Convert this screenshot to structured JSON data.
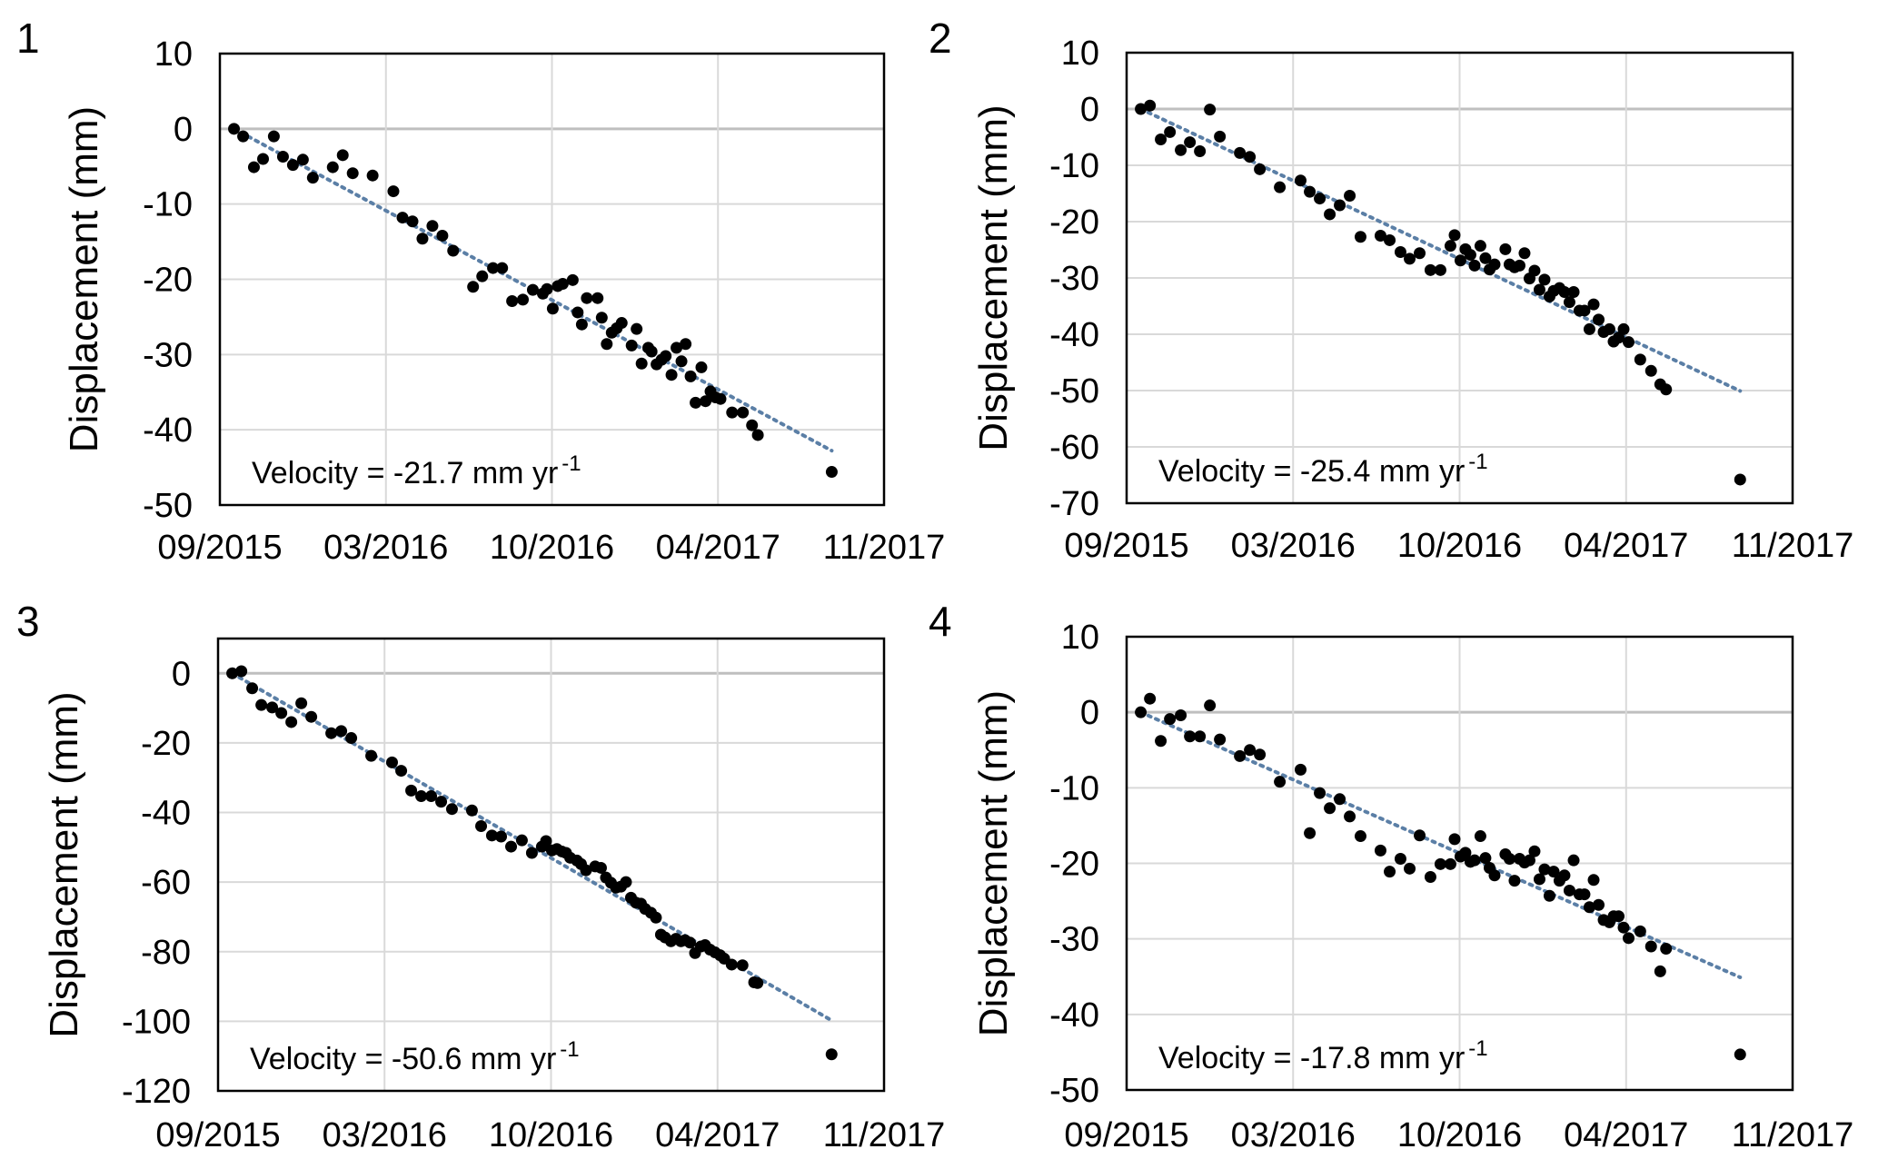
{
  "chart_data": [
    {
      "type": "scatter",
      "panel_label": "1",
      "ylabel": "Displacement (mm)",
      "ylim": [
        -50,
        10
      ],
      "yticks": [
        10,
        0,
        -10,
        -20,
        -30,
        -40,
        -50
      ],
      "xlim": [
        "2015-09-01",
        "2017-11-09"
      ],
      "xtick_labels": [
        "09/2015",
        "03/2016",
        "10/2016",
        "04/2017",
        "11/2017"
      ],
      "grid": true,
      "annotation": {
        "text": "Velocity = -21.7 mm yr",
        "superscript": "-1"
      },
      "trend": {
        "style": "dotted",
        "velocity_mm_per_yr": -21.7,
        "start": "2015-09-18",
        "end": "2017-09-07"
      },
      "points": [
        [
          "2015-09-18",
          0
        ],
        [
          "2015-09-29",
          -1.0
        ],
        [
          "2015-10-12",
          -5.1
        ],
        [
          "2015-10-23",
          -4.0
        ],
        [
          "2015-11-05",
          -1.0
        ],
        [
          "2015-11-16",
          -3.7
        ],
        [
          "2015-11-28",
          -4.8
        ],
        [
          "2015-12-10",
          -4.1
        ],
        [
          "2015-12-22",
          -6.5
        ],
        [
          "2016-01-15",
          -5.1
        ],
        [
          "2016-01-27",
          -3.5
        ],
        [
          "2016-02-08",
          -5.9
        ],
        [
          "2016-03-03",
          -6.2
        ],
        [
          "2016-03-28",
          -8.3
        ],
        [
          "2016-04-08",
          -11.8
        ],
        [
          "2016-04-20",
          -12.3
        ],
        [
          "2016-05-02",
          -14.6
        ],
        [
          "2016-05-14",
          -12.9
        ],
        [
          "2016-05-26",
          -14.2
        ],
        [
          "2016-06-08",
          -16.2
        ],
        [
          "2016-07-02",
          -21.0
        ],
        [
          "2016-07-13",
          -19.6
        ],
        [
          "2016-07-26",
          -18.5
        ],
        [
          "2016-08-06",
          -18.5
        ],
        [
          "2016-08-18",
          -22.9
        ],
        [
          "2016-08-31",
          -22.7
        ],
        [
          "2016-09-12",
          -21.4
        ],
        [
          "2016-09-24",
          -21.9
        ],
        [
          "2016-09-29",
          -21.3
        ],
        [
          "2016-10-06",
          -23.9
        ],
        [
          "2016-10-12",
          -20.9
        ],
        [
          "2016-10-18",
          -20.6
        ],
        [
          "2016-10-30",
          -20.1
        ],
        [
          "2016-11-05",
          -24.4
        ],
        [
          "2016-11-10",
          -26.0
        ],
        [
          "2016-11-16",
          -22.5
        ],
        [
          "2016-11-29",
          -22.5
        ],
        [
          "2016-12-04",
          -25.1
        ],
        [
          "2016-12-10",
          -28.6
        ],
        [
          "2016-12-16",
          -27.1
        ],
        [
          "2016-12-22",
          -26.5
        ],
        [
          "2016-12-28",
          -25.8
        ],
        [
          "2017-01-09",
          -28.8
        ],
        [
          "2017-01-15",
          -26.6
        ],
        [
          "2017-01-21",
          -31.2
        ],
        [
          "2017-01-29",
          -29.1
        ],
        [
          "2017-02-02",
          -29.6
        ],
        [
          "2017-02-08",
          -31.3
        ],
        [
          "2017-02-14",
          -30.7
        ],
        [
          "2017-02-19",
          -30.2
        ],
        [
          "2017-02-26",
          -32.7
        ],
        [
          "2017-03-04",
          -29.1
        ],
        [
          "2017-03-10",
          -30.9
        ],
        [
          "2017-03-15",
          -28.6
        ],
        [
          "2017-03-21",
          -32.9
        ],
        [
          "2017-03-27",
          -36.4
        ],
        [
          "2017-04-03",
          -31.7
        ],
        [
          "2017-04-08",
          -36.2
        ],
        [
          "2017-04-14",
          -34.9
        ],
        [
          "2017-04-20",
          -35.7
        ],
        [
          "2017-04-26",
          -35.9
        ],
        [
          "2017-05-10",
          -37.7
        ],
        [
          "2017-05-23",
          -37.7
        ],
        [
          "2017-06-03",
          -39.4
        ],
        [
          "2017-06-10",
          -40.7
        ],
        [
          "2017-09-07",
          -45.6
        ]
      ]
    },
    {
      "type": "scatter",
      "panel_label": "2",
      "ylabel": "Displacement (mm)",
      "ylim": [
        -70,
        10
      ],
      "yticks": [
        10,
        0,
        -10,
        -20,
        -30,
        -40,
        -50,
        -60,
        -70
      ],
      "xlim": [
        "2015-09-01",
        "2017-11-09"
      ],
      "xtick_labels": [
        "09/2015",
        "03/2016",
        "10/2016",
        "04/2017",
        "11/2017"
      ],
      "grid": true,
      "annotation": {
        "text": "Velocity = -25.4 mm yr",
        "superscript": "-1"
      },
      "trend": {
        "style": "dotted",
        "velocity_mm_per_yr": -25.4,
        "start": "2015-09-18",
        "end": "2017-09-07"
      },
      "points": [
        [
          "2015-09-18",
          0
        ],
        [
          "2015-09-29",
          0.6
        ],
        [
          "2015-10-12",
          -5.4
        ],
        [
          "2015-10-23",
          -4.1
        ],
        [
          "2015-11-05",
          -7.3
        ],
        [
          "2015-11-16",
          -5.9
        ],
        [
          "2015-11-28",
          -7.5
        ],
        [
          "2015-12-10",
          -0.1
        ],
        [
          "2015-12-22",
          -4.9
        ],
        [
          "2016-01-15",
          -7.8
        ],
        [
          "2016-01-27",
          -8.5
        ],
        [
          "2016-02-08",
          -10.7
        ],
        [
          "2016-03-03",
          -13.9
        ],
        [
          "2016-03-28",
          -12.7
        ],
        [
          "2016-04-08",
          -14.7
        ],
        [
          "2016-04-20",
          -15.9
        ],
        [
          "2016-05-02",
          -18.7
        ],
        [
          "2016-05-14",
          -17.1
        ],
        [
          "2016-05-26",
          -15.4
        ],
        [
          "2016-06-08",
          -22.7
        ],
        [
          "2016-07-02",
          -22.5
        ],
        [
          "2016-07-13",
          -23.3
        ],
        [
          "2016-07-26",
          -25.4
        ],
        [
          "2016-08-06",
          -26.6
        ],
        [
          "2016-08-18",
          -25.6
        ],
        [
          "2016-08-31",
          -28.6
        ],
        [
          "2016-09-12",
          -28.6
        ],
        [
          "2016-09-24",
          -24.3
        ],
        [
          "2016-09-29",
          -22.4
        ],
        [
          "2016-10-06",
          -26.9
        ],
        [
          "2016-10-12",
          -24.9
        ],
        [
          "2016-10-18",
          -25.9
        ],
        [
          "2016-10-23",
          -27.8
        ],
        [
          "2016-10-30",
          -24.3
        ],
        [
          "2016-11-05",
          -26.5
        ],
        [
          "2016-11-10",
          -28.5
        ],
        [
          "2016-11-16",
          -27.6
        ],
        [
          "2016-11-29",
          -24.9
        ],
        [
          "2016-12-04",
          -27.6
        ],
        [
          "2016-12-10",
          -28.1
        ],
        [
          "2016-12-16",
          -27.8
        ],
        [
          "2016-12-22",
          -25.6
        ],
        [
          "2016-12-28",
          -30.1
        ],
        [
          "2017-01-03",
          -28.7
        ],
        [
          "2017-01-09",
          -32.1
        ],
        [
          "2017-01-15",
          -30.3
        ],
        [
          "2017-01-21",
          -33.3
        ],
        [
          "2017-01-26",
          -32.3
        ],
        [
          "2017-02-02",
          -31.8
        ],
        [
          "2017-02-08",
          -32.5
        ],
        [
          "2017-02-14",
          -34.3
        ],
        [
          "2017-02-19",
          -32.5
        ],
        [
          "2017-02-26",
          -35.8
        ],
        [
          "2017-03-04",
          -35.8
        ],
        [
          "2017-03-10",
          -39.1
        ],
        [
          "2017-03-15",
          -34.7
        ],
        [
          "2017-03-21",
          -37.4
        ],
        [
          "2017-03-27",
          -39.6
        ],
        [
          "2017-04-03",
          -39.1
        ],
        [
          "2017-04-08",
          -41.3
        ],
        [
          "2017-04-14",
          -40.6
        ],
        [
          "2017-04-20",
          -39.1
        ],
        [
          "2017-04-26",
          -41.4
        ],
        [
          "2017-05-10",
          -44.5
        ],
        [
          "2017-05-23",
          -46.5
        ],
        [
          "2017-06-03",
          -48.9
        ],
        [
          "2017-06-10",
          -49.8
        ],
        [
          "2017-09-07",
          -65.8
        ]
      ]
    },
    {
      "type": "scatter",
      "panel_label": "3",
      "ylabel": "Displacement (mm)",
      "ylim": [
        -120,
        10
      ],
      "yticks": [
        0,
        -20,
        -40,
        -60,
        -80,
        -100,
        -120
      ],
      "xlim": [
        "2015-09-01",
        "2017-11-09"
      ],
      "xtick_labels": [
        "09/2015",
        "03/2016",
        "10/2016",
        "04/2017",
        "11/2017"
      ],
      "grid": true,
      "annotation": {
        "text": "Velocity = -50.6 mm yr",
        "superscript": "-1"
      },
      "trend": {
        "style": "dotted",
        "velocity_mm_per_yr": -50.6,
        "start": "2015-09-18",
        "end": "2017-09-07"
      },
      "points": [
        [
          "2015-09-18",
          0
        ],
        [
          "2015-09-29",
          0.6
        ],
        [
          "2015-10-12",
          -4.3
        ],
        [
          "2015-10-23",
          -9.1
        ],
        [
          "2015-11-05",
          -9.8
        ],
        [
          "2015-11-16",
          -11.4
        ],
        [
          "2015-11-28",
          -14.0
        ],
        [
          "2015-12-10",
          -8.6
        ],
        [
          "2015-12-22",
          -12.5
        ],
        [
          "2016-01-15",
          -17.2
        ],
        [
          "2016-01-27",
          -16.6
        ],
        [
          "2016-02-08",
          -18.6
        ],
        [
          "2016-03-03",
          -23.7
        ],
        [
          "2016-03-28",
          -25.6
        ],
        [
          "2016-04-08",
          -28.0
        ],
        [
          "2016-04-20",
          -33.7
        ],
        [
          "2016-05-02",
          -35.3
        ],
        [
          "2016-05-14",
          -35.3
        ],
        [
          "2016-05-26",
          -36.9
        ],
        [
          "2016-06-08",
          -39.0
        ],
        [
          "2016-07-02",
          -39.4
        ],
        [
          "2016-07-13",
          -43.9
        ],
        [
          "2016-07-26",
          -46.6
        ],
        [
          "2016-08-06",
          -46.9
        ],
        [
          "2016-08-18",
          -49.8
        ],
        [
          "2016-08-31",
          -48.0
        ],
        [
          "2016-09-12",
          -51.6
        ],
        [
          "2016-09-24",
          -49.8
        ],
        [
          "2016-09-29",
          -48.2
        ],
        [
          "2016-10-06",
          -50.9
        ],
        [
          "2016-10-12",
          -50.5
        ],
        [
          "2016-10-18",
          -51.2
        ],
        [
          "2016-10-23",
          -51.6
        ],
        [
          "2016-10-28",
          -53.0
        ],
        [
          "2016-11-05",
          -53.8
        ],
        [
          "2016-11-10",
          -54.8
        ],
        [
          "2016-11-16",
          -56.6
        ],
        [
          "2016-11-27",
          -55.5
        ],
        [
          "2016-12-04",
          -55.9
        ],
        [
          "2016-12-10",
          -58.7
        ],
        [
          "2016-12-16",
          -60.2
        ],
        [
          "2016-12-22",
          -61.6
        ],
        [
          "2016-12-28",
          -61.3
        ],
        [
          "2017-01-03",
          -60.0
        ],
        [
          "2017-01-09",
          -64.5
        ],
        [
          "2017-01-15",
          -65.9
        ],
        [
          "2017-01-21",
          -66.2
        ],
        [
          "2017-01-26",
          -67.7
        ],
        [
          "2017-02-02",
          -68.8
        ],
        [
          "2017-02-08",
          -70.2
        ],
        [
          "2017-02-14",
          -75.1
        ],
        [
          "2017-02-19",
          -75.9
        ],
        [
          "2017-02-26",
          -77.0
        ],
        [
          "2017-03-04",
          -76.3
        ],
        [
          "2017-03-10",
          -77.0
        ],
        [
          "2017-03-15",
          -76.7
        ],
        [
          "2017-03-21",
          -77.4
        ],
        [
          "2017-03-27",
          -80.4
        ],
        [
          "2017-04-03",
          -78.5
        ],
        [
          "2017-04-08",
          -78.1
        ],
        [
          "2017-04-14",
          -79.4
        ],
        [
          "2017-04-20",
          -80.2
        ],
        [
          "2017-04-26",
          -81.0
        ],
        [
          "2017-05-01",
          -82.0
        ],
        [
          "2017-05-10",
          -83.7
        ],
        [
          "2017-05-23",
          -83.9
        ],
        [
          "2017-06-06",
          -88.8
        ],
        [
          "2017-06-10",
          -89.0
        ],
        [
          "2017-09-07",
          -109.5
        ]
      ]
    },
    {
      "type": "scatter",
      "panel_label": "4",
      "ylabel": "Displacement (mm)",
      "ylim": [
        -50,
        10
      ],
      "yticks": [
        10,
        0,
        -10,
        -20,
        -30,
        -40,
        -50
      ],
      "xlim": [
        "2015-09-01",
        "2017-11-09"
      ],
      "xtick_labels": [
        "09/2015",
        "03/2016",
        "10/2016",
        "04/2017",
        "11/2017"
      ],
      "grid": true,
      "annotation": {
        "text": "Velocity = -17.8 mm yr",
        "superscript": "-1"
      },
      "trend": {
        "style": "dotted",
        "velocity_mm_per_yr": -17.8,
        "start": "2015-09-18",
        "end": "2017-09-07"
      },
      "points": [
        [
          "2015-09-18",
          0
        ],
        [
          "2015-09-29",
          1.8
        ],
        [
          "2015-10-12",
          -3.8
        ],
        [
          "2015-10-23",
          -0.9
        ],
        [
          "2015-11-05",
          -0.4
        ],
        [
          "2015-11-16",
          -3.2
        ],
        [
          "2015-11-28",
          -3.2
        ],
        [
          "2015-12-10",
          0.9
        ],
        [
          "2015-12-22",
          -3.6
        ],
        [
          "2016-01-15",
          -5.8
        ],
        [
          "2016-01-27",
          -5.0
        ],
        [
          "2016-02-08",
          -5.6
        ],
        [
          "2016-03-03",
          -9.2
        ],
        [
          "2016-03-28",
          -7.6
        ],
        [
          "2016-04-08",
          -16.0
        ],
        [
          "2016-04-20",
          -10.7
        ],
        [
          "2016-05-02",
          -12.7
        ],
        [
          "2016-05-14",
          -11.5
        ],
        [
          "2016-05-26",
          -13.8
        ],
        [
          "2016-06-08",
          -16.4
        ],
        [
          "2016-07-02",
          -18.3
        ],
        [
          "2016-07-13",
          -21.1
        ],
        [
          "2016-07-26",
          -19.4
        ],
        [
          "2016-08-06",
          -20.7
        ],
        [
          "2016-08-18",
          -16.3
        ],
        [
          "2016-08-31",
          -21.8
        ],
        [
          "2016-09-12",
          -20.1
        ],
        [
          "2016-09-24",
          -20.1
        ],
        [
          "2016-09-29",
          -16.8
        ],
        [
          "2016-10-06",
          -19.1
        ],
        [
          "2016-10-12",
          -18.6
        ],
        [
          "2016-10-18",
          -19.8
        ],
        [
          "2016-10-23",
          -19.6
        ],
        [
          "2016-10-30",
          -16.4
        ],
        [
          "2016-11-05",
          -19.3
        ],
        [
          "2016-11-10",
          -20.6
        ],
        [
          "2016-11-16",
          -21.6
        ],
        [
          "2016-11-29",
          -18.8
        ],
        [
          "2016-12-04",
          -19.4
        ],
        [
          "2016-12-10",
          -22.3
        ],
        [
          "2016-12-16",
          -19.4
        ],
        [
          "2016-12-22",
          -19.9
        ],
        [
          "2016-12-28",
          -19.6
        ],
        [
          "2017-01-03",
          -18.4
        ],
        [
          "2017-01-09",
          -22.1
        ],
        [
          "2017-01-15",
          -20.8
        ],
        [
          "2017-01-21",
          -24.3
        ],
        [
          "2017-01-26",
          -21.1
        ],
        [
          "2017-02-02",
          -22.3
        ],
        [
          "2017-02-08",
          -21.6
        ],
        [
          "2017-02-14",
          -23.6
        ],
        [
          "2017-02-19",
          -19.6
        ],
        [
          "2017-02-26",
          -24.1
        ],
        [
          "2017-03-04",
          -24.1
        ],
        [
          "2017-03-10",
          -25.8
        ],
        [
          "2017-03-15",
          -22.2
        ],
        [
          "2017-03-21",
          -25.5
        ],
        [
          "2017-03-27",
          -27.5
        ],
        [
          "2017-04-03",
          -27.8
        ],
        [
          "2017-04-08",
          -27.0
        ],
        [
          "2017-04-14",
          -27.0
        ],
        [
          "2017-04-20",
          -28.5
        ],
        [
          "2017-04-26",
          -29.9
        ],
        [
          "2017-05-10",
          -29.0
        ],
        [
          "2017-05-23",
          -31.0
        ],
        [
          "2017-06-03",
          -34.3
        ],
        [
          "2017-06-10",
          -31.3
        ],
        [
          "2017-09-07",
          -45.3
        ]
      ]
    }
  ],
  "colors": {
    "points": "#000000",
    "trend": "#5b7fa6",
    "grid": "#d9d9d9",
    "zero_line": "#bfbfbf",
    "frame": "#000000"
  }
}
